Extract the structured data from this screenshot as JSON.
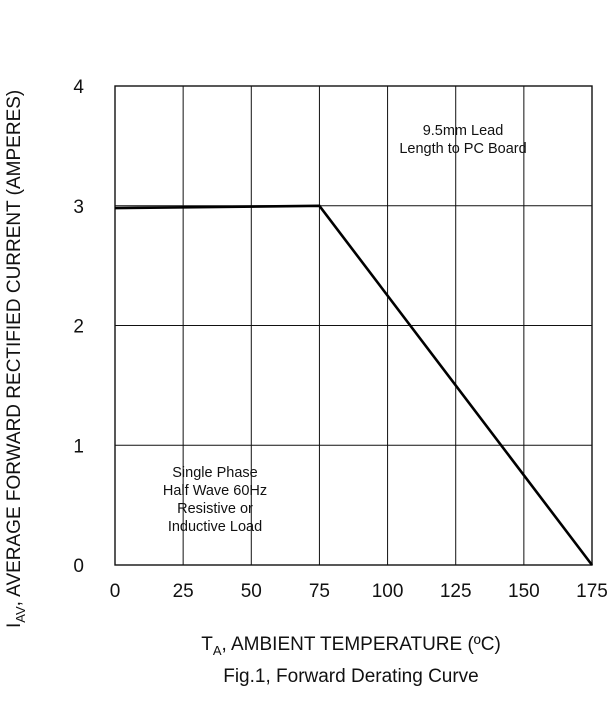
{
  "chart_data": {
    "type": "line",
    "caption": "Fig.1,  Forward Derating Curve",
    "xlabel": {
      "main": "T",
      "sub": "A",
      "rest": ", AMBIENT TEMPERATURE (ºC)"
    },
    "ylabel": {
      "main": "I",
      "sub": "AV",
      "rest": ", AVERAGE FORWARD RECTIFIED CURRENT (AMPERES)"
    },
    "xlim": [
      0,
      175
    ],
    "ylim": [
      0,
      4
    ],
    "xticks": [
      0,
      25,
      50,
      75,
      100,
      125,
      150,
      175
    ],
    "yticks": [
      0,
      1,
      2,
      3,
      4
    ],
    "grid": true,
    "series": [
      {
        "x": [
          0,
          75,
          175
        ],
        "y": [
          2.98,
          3.0,
          0
        ]
      }
    ],
    "annotations": [
      {
        "lines": [
          "9.5mm Lead",
          "Length to PC Board"
        ]
      },
      {
        "lines": [
          "Single Phase",
          "Half Wave 60Hz",
          "Resistive or",
          "Inductive Load"
        ]
      }
    ]
  }
}
